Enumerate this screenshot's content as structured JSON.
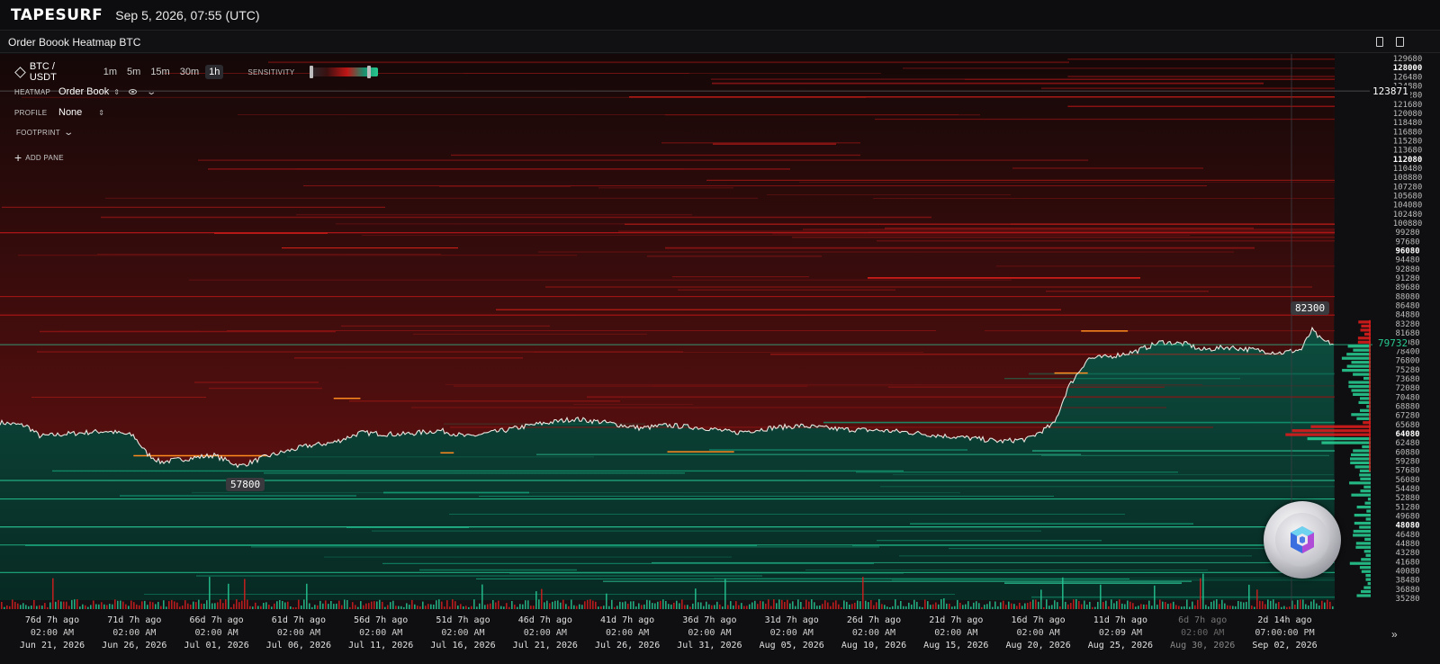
{
  "app": {
    "brand": "TAPESURF",
    "datetime": "Sep 5, 2026, 07:55 (UTC)",
    "panel_title": "Order Boook Heatmap BTC"
  },
  "controls": {
    "pair": "BTC / USDT",
    "timeframes": [
      "1m",
      "5m",
      "15m",
      "30m",
      "1h"
    ],
    "active_timeframe": "1h",
    "sensitivity_label": "SENSITIVITY",
    "heatmap_label": "HEATMAP",
    "heatmap_value": "Order Book",
    "profile_label": "PROFILE",
    "profile_value": "None",
    "footprint_label": "FOOTPRINT",
    "add_pane_label": "ADD PANE"
  },
  "price_axis": {
    "ticks": [
      "129680",
      "128000",
      "126480",
      "124880",
      "123280",
      "121680",
      "120080",
      "118480",
      "116880",
      "115280",
      "113680",
      "112080",
      "110480",
      "108880",
      "107280",
      "105680",
      "104080",
      "102480",
      "100880",
      "99280",
      "97680",
      "96080",
      "94480",
      "92880",
      "91280",
      "89680",
      "88080",
      "86480",
      "84880",
      "83280",
      "81680",
      "80080",
      "78400",
      "76800",
      "75280",
      "73680",
      "72080",
      "70480",
      "68880",
      "67280",
      "65680",
      "64080",
      "62480",
      "60880",
      "59280",
      "57680",
      "56080",
      "54480",
      "52880",
      "51280",
      "49680",
      "48080",
      "46480",
      "44880",
      "43280",
      "41680",
      "40080",
      "38480",
      "36880",
      "35280"
    ],
    "crosshair_price": "123871",
    "last_price": "79732"
  },
  "chart_data": {
    "type": "heatmap",
    "y_range": [
      35280,
      129680
    ],
    "high_label": "82300",
    "low_label": "57800",
    "price_path": [
      [
        0,
        66200
      ],
      [
        0.02,
        65600
      ],
      [
        0.03,
        63800
      ],
      [
        0.05,
        64200
      ],
      [
        0.08,
        64700
      ],
      [
        0.1,
        63900
      ],
      [
        0.11,
        60800
      ],
      [
        0.12,
        59300
      ],
      [
        0.14,
        59900
      ],
      [
        0.16,
        60500
      ],
      [
        0.18,
        58600
      ],
      [
        0.2,
        60300
      ],
      [
        0.23,
        62100
      ],
      [
        0.25,
        62700
      ],
      [
        0.27,
        64400
      ],
      [
        0.3,
        64100
      ],
      [
        0.33,
        64800
      ],
      [
        0.35,
        63700
      ],
      [
        0.38,
        64900
      ],
      [
        0.4,
        65800
      ],
      [
        0.43,
        66800
      ],
      [
        0.45,
        66300
      ],
      [
        0.48,
        65200
      ],
      [
        0.5,
        65700
      ],
      [
        0.53,
        65200
      ],
      [
        0.55,
        64400
      ],
      [
        0.58,
        65300
      ],
      [
        0.6,
        65600
      ],
      [
        0.63,
        65000
      ],
      [
        0.66,
        64800
      ],
      [
        0.68,
        64500
      ],
      [
        0.7,
        64000
      ],
      [
        0.73,
        63400
      ],
      [
        0.75,
        62900
      ],
      [
        0.77,
        63300
      ],
      [
        0.79,
        66000
      ],
      [
        0.8,
        72200
      ],
      [
        0.815,
        77300
      ],
      [
        0.83,
        77600
      ],
      [
        0.85,
        78500
      ],
      [
        0.87,
        80200
      ],
      [
        0.89,
        79800
      ],
      [
        0.9,
        78800
      ],
      [
        0.92,
        79300
      ],
      [
        0.94,
        78800
      ],
      [
        0.96,
        78300
      ],
      [
        0.975,
        78900
      ],
      [
        0.983,
        82300
      ],
      [
        0.99,
        80500
      ],
      [
        1.0,
        79732
      ]
    ],
    "time_axis": [
      {
        "ago": "76d 7h ago",
        "time": "02:00 AM",
        "date": "Jun 21, 2026"
      },
      {
        "ago": "71d 7h ago",
        "time": "02:00 AM",
        "date": "Jun 26, 2026"
      },
      {
        "ago": "66d 7h ago",
        "time": "02:00 AM",
        "date": "Jul 01, 2026"
      },
      {
        "ago": "61d 7h ago",
        "time": "02:00 AM",
        "date": "Jul 06, 2026"
      },
      {
        "ago": "56d 7h ago",
        "time": "02:00 AM",
        "date": "Jul 11, 2026"
      },
      {
        "ago": "51d 7h ago",
        "time": "02:00 AM",
        "date": "Jul 16, 2026"
      },
      {
        "ago": "46d 7h ago",
        "time": "02:00 AM",
        "date": "Jul 21, 2026"
      },
      {
        "ago": "41d 7h ago",
        "time": "02:00 AM",
        "date": "Jul 26, 2026"
      },
      {
        "ago": "36d 7h ago",
        "time": "02:00 AM",
        "date": "Jul 31, 2026"
      },
      {
        "ago": "31d 7h ago",
        "time": "02:00 AM",
        "date": "Aug 05, 2026"
      },
      {
        "ago": "26d 7h ago",
        "time": "02:00 AM",
        "date": "Aug 10, 2026"
      },
      {
        "ago": "21d 7h ago",
        "time": "02:00 AM",
        "date": "Aug 15, 2026"
      },
      {
        "ago": "16d 7h ago",
        "time": "02:00 AM",
        "date": "Aug 20, 2026"
      },
      {
        "ago": "11d 7h ago",
        "time": "02:09 AM",
        "date": "Aug 25, 2026"
      },
      {
        "ago": "6d 7h ago",
        "time": "02:00 AM",
        "date": "Aug 30, 2026"
      },
      {
        "ago": "2d 14h ago",
        "time": "07:00:00 PM",
        "date": "Sep 02, 2026"
      }
    ]
  },
  "colors": {
    "ask_red": "#c8161a",
    "bid_green": "#23c48f",
    "highlight_orange": "#ff8a1e",
    "background": "#0f0f11"
  },
  "icons": {
    "pair": "diamond-icon",
    "eye": "eye-icon",
    "forward": "double-chevron-right-icon"
  }
}
